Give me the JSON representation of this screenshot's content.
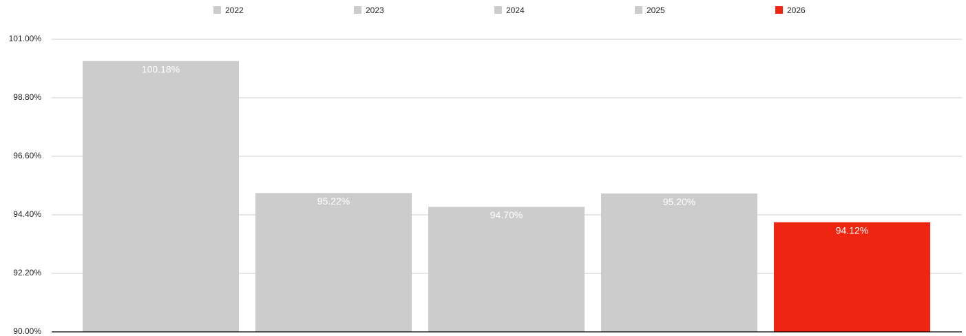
{
  "chart_data": {
    "type": "bar",
    "categories": [
      null
    ],
    "series": [
      {
        "name": "2022",
        "color": "#cccccc",
        "values": [
          100.18
        ],
        "value_labels": [
          "100.18%"
        ]
      },
      {
        "name": "2023",
        "color": "#cccccc",
        "values": [
          95.22
        ],
        "value_labels": [
          "95.22%"
        ]
      },
      {
        "name": "2024",
        "color": "#cccccc",
        "values": [
          94.7
        ],
        "value_labels": [
          "94.70%"
        ]
      },
      {
        "name": "2025",
        "color": "#cccccc",
        "values": [
          95.2
        ],
        "value_labels": [
          "95.20%"
        ]
      },
      {
        "name": "2026",
        "color": "#ee2510",
        "values": [
          94.12
        ],
        "value_labels": [
          "94.12%"
        ]
      }
    ],
    "ylim": [
      90,
      101
    ],
    "yticks": [
      {
        "value": 90,
        "label": "90.00%"
      },
      {
        "value": 92.2,
        "label": "92.20%"
      },
      {
        "value": 94.4,
        "label": "94.40%"
      },
      {
        "value": 96.6,
        "label": "96.60%"
      },
      {
        "value": 98.8,
        "label": "98.80%"
      },
      {
        "value": 101,
        "label": "101.00%"
      }
    ],
    "grid": true,
    "legend": "top"
  }
}
